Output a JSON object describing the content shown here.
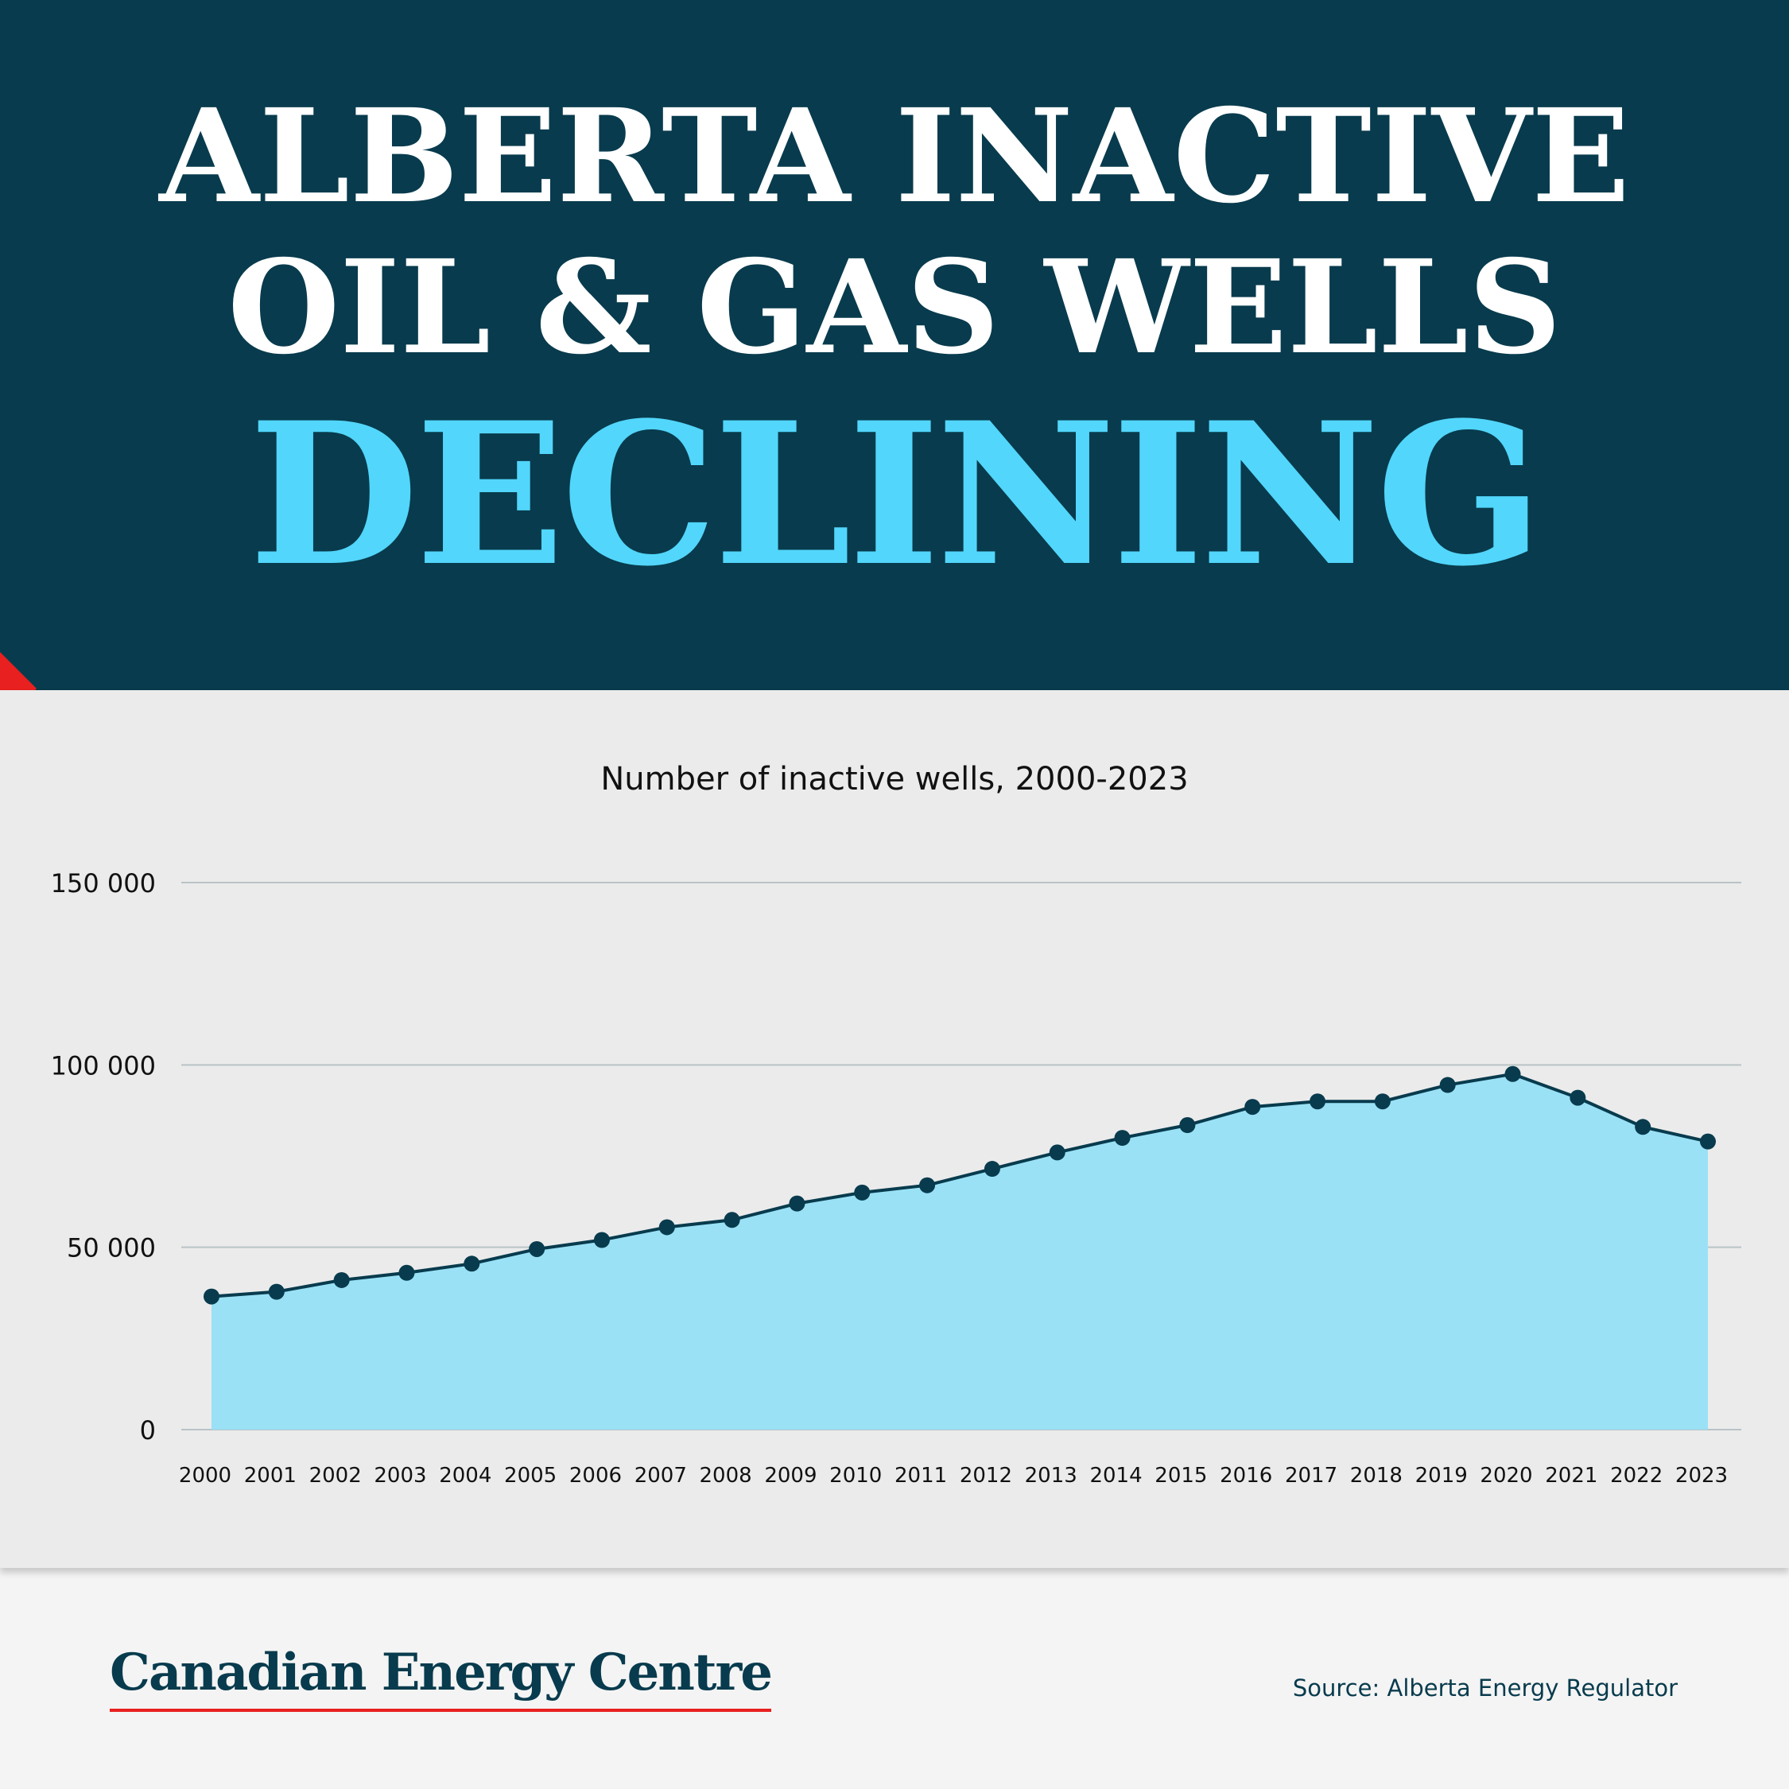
{
  "header": {
    "line1": "ALBERTA INACTIVE",
    "line2": "OIL & GAS WELLS",
    "line3": "DECLINING"
  },
  "footer": {
    "logo": "Canadian Energy Centre",
    "source": "Source: Alberta Energy Regulator"
  },
  "colors": {
    "header_bg": "#083b4d",
    "accent_cyan": "#52d6fb",
    "area_fill": "#9ae1f6",
    "line_marker": "#083b4d",
    "accent_red": "#e8201f",
    "panel_bg": "#ebebeb"
  },
  "chart_data": {
    "type": "area",
    "title": "Number of inactive wells, 2000-2023",
    "xlabel": "",
    "ylabel": "",
    "categories": [
      "2000",
      "2001",
      "2002",
      "2003",
      "2004",
      "2005",
      "2006",
      "2007",
      "2008",
      "2009",
      "2010",
      "2011",
      "2012",
      "2013",
      "2014",
      "2015",
      "2016",
      "2017",
      "2018",
      "2019",
      "2020",
      "2021",
      "2022",
      "2023"
    ],
    "values": [
      36500,
      37800,
      41000,
      43000,
      45500,
      49500,
      52000,
      55500,
      57500,
      62000,
      65000,
      67000,
      71500,
      76000,
      80000,
      83500,
      88500,
      90000,
      90000,
      94500,
      97500,
      91000,
      83000,
      79000
    ],
    "y_ticks": [
      0,
      50000,
      100000,
      150000
    ],
    "y_tick_labels": [
      "0",
      "50 000",
      "100 000",
      "150 000"
    ],
    "ylim": [
      0,
      150000
    ],
    "grid": true,
    "markers": true
  }
}
